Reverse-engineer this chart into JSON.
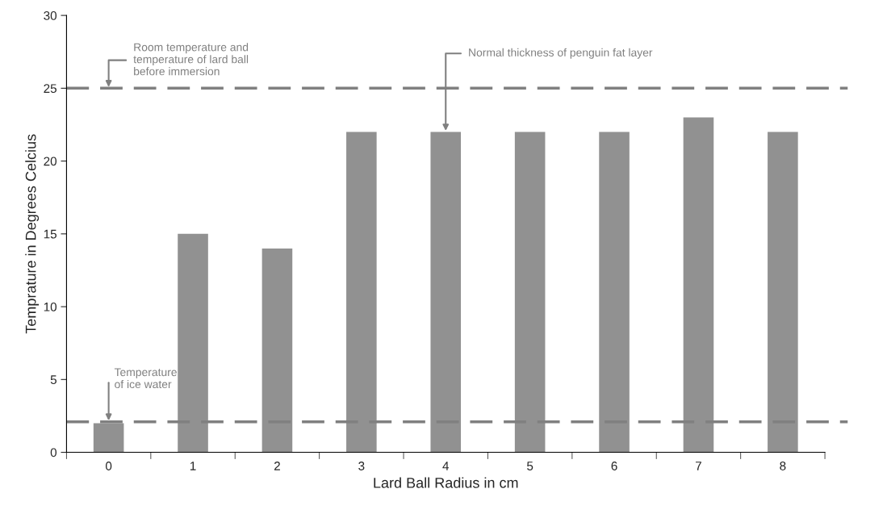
{
  "chart_data": {
    "type": "bar",
    "xlabel": "Lard Ball Radius in cm",
    "ylabel": "Temprature in Degrees Celcius",
    "categories": [
      "0",
      "1",
      "2",
      "3",
      "4",
      "5",
      "6",
      "7",
      "8"
    ],
    "values": [
      2,
      15,
      14,
      22,
      22,
      22,
      22,
      23,
      22
    ],
    "color": "#919191",
    "ylim": [
      0,
      30
    ],
    "yticks": [
      0,
      5,
      10,
      15,
      20,
      25,
      30
    ],
    "grid": false,
    "ref_lines": [
      {
        "axis": "y",
        "value": 25,
        "color": "#808080",
        "line_style": "dashed"
      },
      {
        "axis": "y",
        "value": 2.1,
        "color": "#808080",
        "line_style": "dashed"
      }
    ],
    "annotations": [
      {
        "text": "Room temperature and\ntemperature of lard ball\nbefore immersion",
        "x": "0",
        "y": 25
      },
      {
        "text": "Normal thickness of penguin fat layer",
        "x": "4",
        "y": 22
      },
      {
        "text": "Temperature\nof ice water",
        "x": "0",
        "y": 2.1
      }
    ]
  }
}
